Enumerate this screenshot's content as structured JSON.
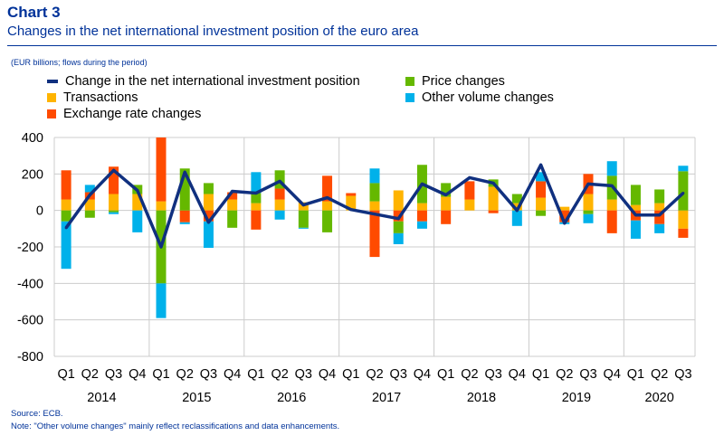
{
  "header": {
    "chart_number": "Chart 3",
    "title": "Changes in the net international investment position of the euro area",
    "units": "(EUR billions; flows during the period)"
  },
  "footer": {
    "source": "Source: ECB.",
    "note": "Note: \"Other volume changes\" mainly reflect reclassifications and data enhancements."
  },
  "colors": {
    "net_line": "#10307f",
    "transactions": "#ffb400",
    "exchange_rate": "#ff4b00",
    "price": "#65b800",
    "other_volume": "#00b1ea",
    "grid": "#cccccc"
  },
  "chart_data": {
    "type": "bar",
    "stacked": true,
    "quarters": [
      "Q1",
      "Q2",
      "Q3",
      "Q4",
      "Q1",
      "Q2",
      "Q3",
      "Q4",
      "Q1",
      "Q2",
      "Q3",
      "Q4",
      "Q1",
      "Q2",
      "Q3",
      "Q4",
      "Q1",
      "Q2",
      "Q3",
      "Q4",
      "Q1",
      "Q2",
      "Q3",
      "Q4",
      "Q1",
      "Q2",
      "Q3"
    ],
    "years": [
      "2014",
      "2015",
      "2016",
      "2017",
      "2018",
      "2019",
      "2020"
    ],
    "ylim": [
      -800,
      400
    ],
    "yticks": [
      -800,
      -600,
      -400,
      -200,
      0,
      200,
      400
    ],
    "legend": {
      "net": "Change in the net international investment position",
      "transactions": "Transactions",
      "exchange_rate": "Exchange rate changes",
      "price": "Price changes",
      "other_volume": "Other volume changes"
    },
    "series": [
      {
        "key": "transactions",
        "values": [
          60,
          60,
          90,
          90,
          50,
          0,
          90,
          60,
          40,
          60,
          45,
          50,
          80,
          50,
          110,
          40,
          75,
          60,
          130,
          40,
          70,
          20,
          90,
          60,
          30,
          40,
          -100
        ]
      },
      {
        "key": "exchange_rate",
        "values": [
          160,
          40,
          150,
          0,
          350,
          -65,
          -60,
          40,
          -105,
          60,
          0,
          140,
          15,
          -255,
          -60,
          -60,
          -75,
          100,
          -15,
          0,
          90,
          -65,
          110,
          -125,
          -55,
          -75,
          -50
        ]
      },
      {
        "key": "price",
        "values": [
          -60,
          -40,
          -10,
          50,
          -400,
          230,
          60,
          -95,
          55,
          100,
          -95,
          -120,
          0,
          100,
          -65,
          210,
          75,
          0,
          40,
          50,
          -30,
          0,
          -20,
          130,
          110,
          75,
          215
        ]
      },
      {
        "key": "other_volume",
        "values": [
          -260,
          40,
          -10,
          -120,
          -190,
          -10,
          -145,
          0,
          115,
          -50,
          -5,
          0,
          0,
          80,
          -60,
          -40,
          0,
          0,
          0,
          -85,
          50,
          -10,
          -50,
          80,
          -100,
          -50,
          30
        ]
      }
    ],
    "net_position": [
      -95,
      85,
      220,
      110,
      -200,
      210,
      -65,
      105,
      95,
      160,
      30,
      70,
      5,
      -20,
      -45,
      145,
      85,
      180,
      150,
      0,
      250,
      -70,
      145,
      135,
      -25,
      -25,
      95
    ]
  }
}
